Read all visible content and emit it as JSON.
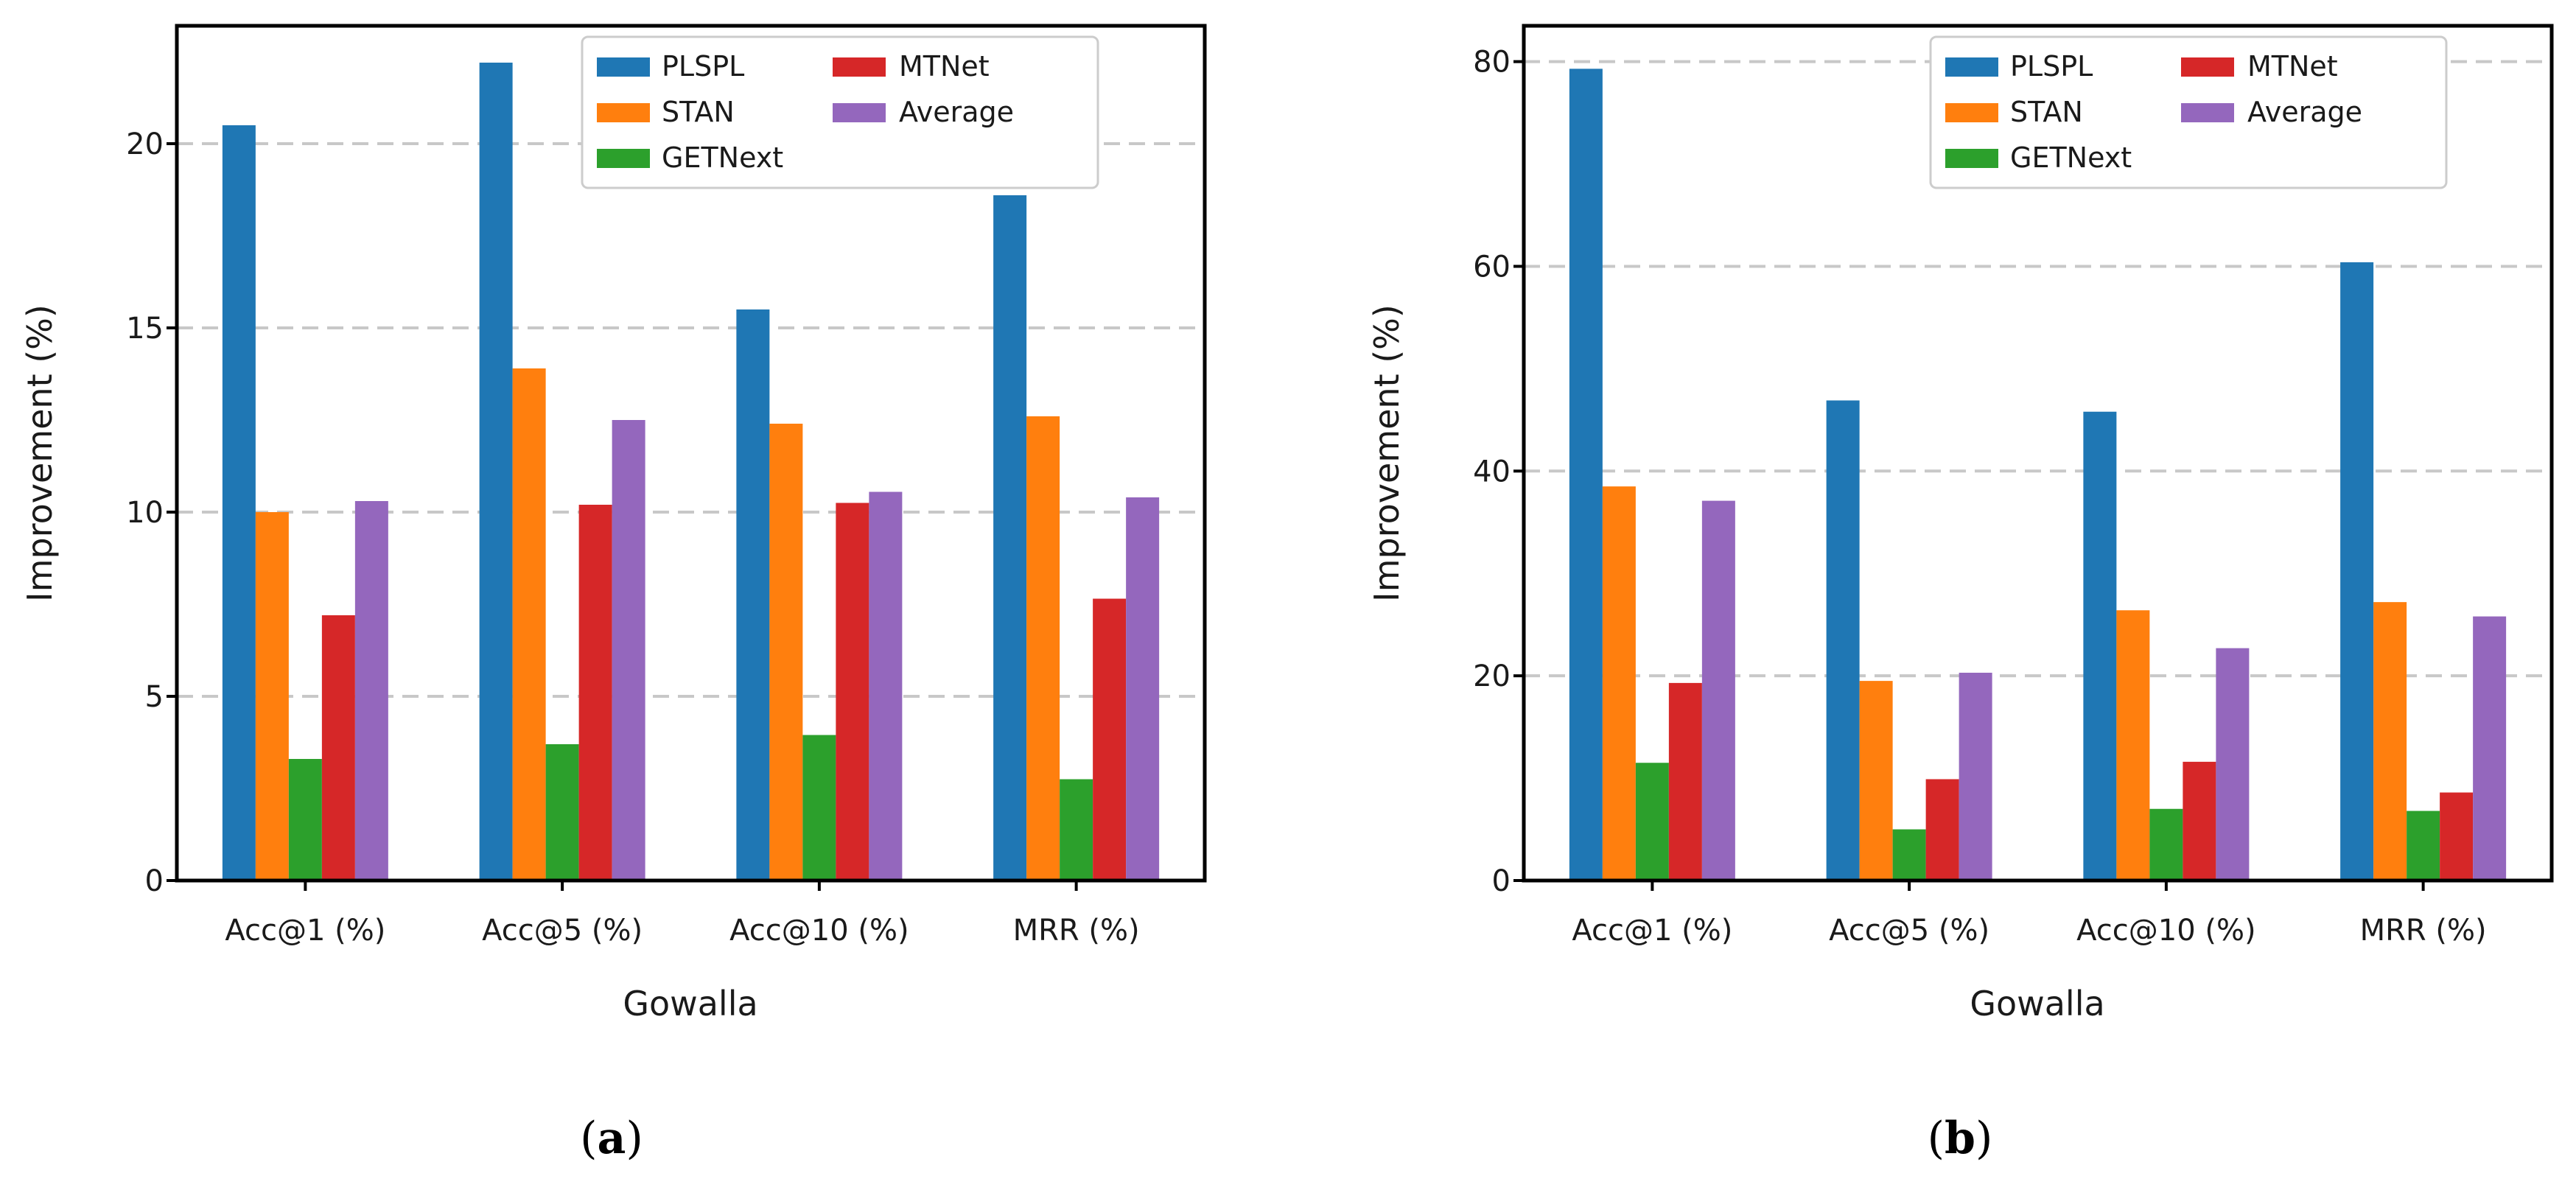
{
  "colors": {
    "PLSPL": "#1f77b4",
    "STAN": "#ff7f0e",
    "GETNext": "#2ca02c",
    "MTNet": "#d62728",
    "Average": "#9467bd"
  },
  "chart_data": [
    {
      "type": "bar",
      "panel_label": "a",
      "xlabel": "Gowalla",
      "ylabel": "Improvement (%)",
      "ylim": [
        0,
        23.2
      ],
      "yticks": [
        0,
        5,
        10,
        15,
        20
      ],
      "gridlines": [
        5,
        10,
        15,
        20
      ],
      "legend_position": "top-right",
      "categories": [
        "Acc@1 (%)",
        "Acc@5 (%)",
        "Acc@10 (%)",
        "MRR (%)"
      ],
      "series": [
        {
          "name": "PLSPL",
          "values": [
            20.5,
            22.2,
            15.5,
            18.6
          ]
        },
        {
          "name": "STAN",
          "values": [
            10.0,
            13.9,
            12.4,
            12.6
          ]
        },
        {
          "name": "GETNext",
          "values": [
            3.3,
            3.7,
            3.95,
            2.75
          ]
        },
        {
          "name": "MTNet",
          "values": [
            7.2,
            10.2,
            10.25,
            7.65
          ]
        },
        {
          "name": "Average",
          "values": [
            10.3,
            12.5,
            10.55,
            10.4
          ]
        }
      ]
    },
    {
      "type": "bar",
      "panel_label": "b",
      "xlabel": "Gowalla",
      "ylabel": "Improvement (%)",
      "ylim": [
        0,
        83.5
      ],
      "yticks": [
        0,
        20,
        40,
        60,
        80
      ],
      "gridlines": [
        20,
        40,
        60,
        80
      ],
      "legend_position": "top-right",
      "categories": [
        "Acc@1 (%)",
        "Acc@5 (%)",
        "Acc@10 (%)",
        "MRR (%)"
      ],
      "series": [
        {
          "name": "PLSPL",
          "values": [
            79.3,
            46.9,
            45.8,
            60.4
          ]
        },
        {
          "name": "STAN",
          "values": [
            38.5,
            19.5,
            26.4,
            27.2
          ]
        },
        {
          "name": "GETNext",
          "values": [
            11.5,
            5.0,
            7.0,
            6.8
          ]
        },
        {
          "name": "MTNet",
          "values": [
            19.3,
            9.9,
            11.6,
            8.6
          ]
        },
        {
          "name": "Average",
          "values": [
            37.1,
            20.3,
            22.7,
            25.8
          ]
        }
      ]
    }
  ]
}
